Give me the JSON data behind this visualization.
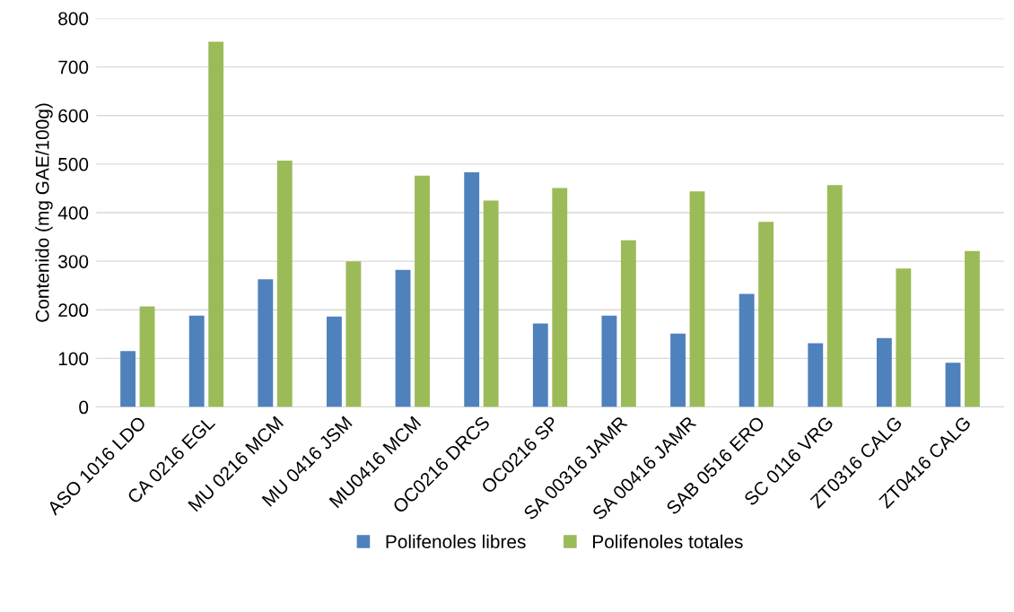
{
  "chart_data": {
    "type": "bar",
    "ylabel": "Contenido (mg GAE/100g)",
    "categories": [
      "ASO 1016 LDO",
      "CA 0216 EGL",
      "MU 0216 MCM",
      "MU 0416 JSM",
      "MU0416 MCM",
      "OC0216 DRCS",
      "OC0216 SP",
      "SA 00316 JAMR",
      "SA 00416 JAMR",
      "SAB 0516 ERO",
      "SC 0116 VRG",
      "ZT0316 CALG",
      "ZT0416 CALG"
    ],
    "series": [
      {
        "name": "Polifenoles libres",
        "color": "#4f81bd",
        "values": [
          115,
          188,
          263,
          186,
          282,
          483,
          172,
          188,
          151,
          233,
          131,
          142,
          91
        ]
      },
      {
        "name": "Polifenoles totales",
        "color": "#9bbb59",
        "values": [
          207,
          752,
          507,
          300,
          476,
          425,
          451,
          343,
          444,
          381,
          457,
          285,
          321
        ]
      }
    ],
    "ylim": [
      0,
      800
    ],
    "yticks": [
      0,
      100,
      200,
      300,
      400,
      500,
      600,
      700,
      800
    ],
    "grid": "y",
    "legend": "bottom"
  }
}
